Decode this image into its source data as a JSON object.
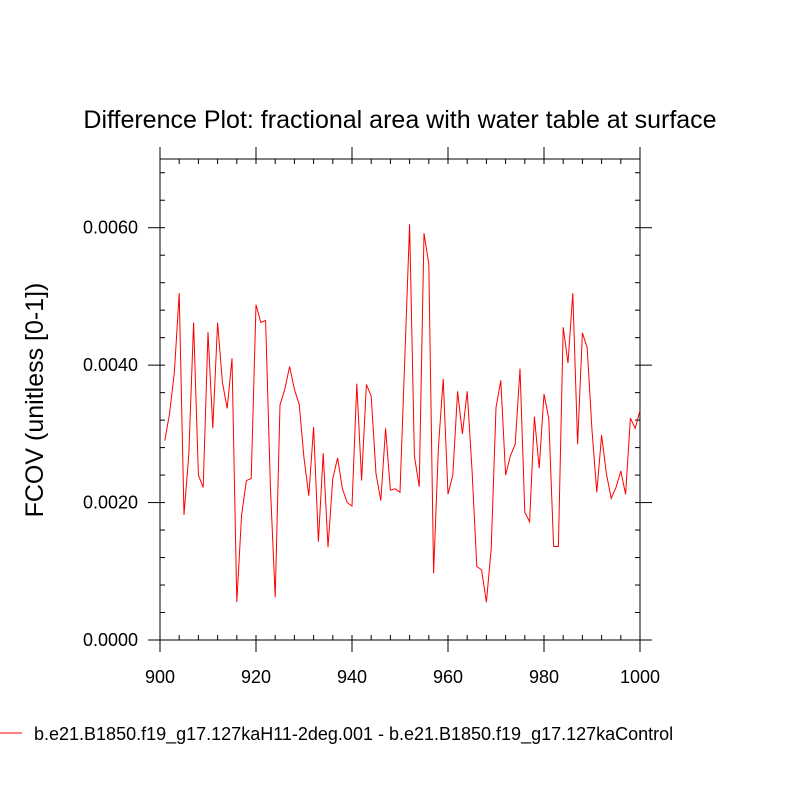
{
  "chart_data": {
    "type": "line",
    "title": "Difference Plot: fractional area with water table at surface",
    "xlabel": "",
    "ylabel": "FCOV  (unitless [0-1])",
    "xlim": [
      900,
      1000
    ],
    "ylim": [
      0.0,
      0.007
    ],
    "x_ticks": [
      900,
      920,
      940,
      960,
      980,
      1000
    ],
    "x_tick_labels": [
      "900",
      "920",
      "940",
      "960",
      "980",
      "1000"
    ],
    "y_ticks": [
      0.0,
      0.002,
      0.004,
      0.006
    ],
    "y_tick_labels": [
      "0.0000",
      "0.0020",
      "0.0040",
      "0.0060"
    ],
    "grid": false,
    "legend_position": "bottom",
    "series": [
      {
        "name": "b.e21.B1850.f19_g17.127kaH11-2deg.001 - b.e21.B1850.f19_g17.127kaControl",
        "color": "#ff0000",
        "x": [
          901,
          902,
          903,
          904,
          905,
          906,
          907,
          908,
          909,
          910,
          911,
          912,
          913,
          914,
          915,
          916,
          917,
          918,
          919,
          920,
          921,
          922,
          923,
          924,
          925,
          926,
          927,
          928,
          929,
          930,
          931,
          932,
          933,
          934,
          935,
          936,
          937,
          938,
          939,
          940,
          941,
          942,
          943,
          944,
          945,
          946,
          947,
          948,
          949,
          950,
          951,
          952,
          953,
          954,
          955,
          956,
          957,
          958,
          959,
          960,
          961,
          962,
          963,
          964,
          965,
          966,
          967,
          968,
          969,
          970,
          971,
          972,
          973,
          974,
          975,
          976,
          977,
          978,
          979,
          980,
          981,
          982,
          983,
          984,
          985,
          986,
          987,
          988,
          989,
          990,
          991,
          992,
          993,
          994,
          995,
          996,
          997,
          998,
          999,
          1000
        ],
        "values": [
          0.0029,
          0.0033,
          0.0039,
          0.00505,
          0.00182,
          0.0027,
          0.00462,
          0.0024,
          0.00222,
          0.00448,
          0.00308,
          0.00462,
          0.00375,
          0.00337,
          0.0041,
          0.00055,
          0.00182,
          0.00232,
          0.00235,
          0.00488,
          0.00462,
          0.00465,
          0.00223,
          0.00062,
          0.00342,
          0.00365,
          0.00398,
          0.00365,
          0.00343,
          0.00265,
          0.0021,
          0.0031,
          0.00143,
          0.00272,
          0.00135,
          0.00235,
          0.00265,
          0.0022,
          0.002,
          0.00195,
          0.00373,
          0.00232,
          0.00372,
          0.00355,
          0.00242,
          0.00203,
          0.00308,
          0.00218,
          0.0022,
          0.00215,
          0.0041,
          0.00605,
          0.00268,
          0.00223,
          0.00592,
          0.00547,
          0.00097,
          0.0028,
          0.0038,
          0.00212,
          0.0024,
          0.00362,
          0.003,
          0.00362,
          0.00248,
          0.00107,
          0.00102,
          0.00055,
          0.00133,
          0.00338,
          0.00378,
          0.0024,
          0.00268,
          0.00285,
          0.00395,
          0.00186,
          0.00172,
          0.00325,
          0.0025,
          0.00358,
          0.00322,
          0.00136,
          0.00136,
          0.00455,
          0.00403,
          0.00505,
          0.00285,
          0.00447,
          0.00425,
          0.00305,
          0.00215,
          0.00298,
          0.00242,
          0.00206,
          0.00222,
          0.00246,
          0.00212,
          0.00323,
          0.00308,
          0.00334
        ]
      }
    ]
  }
}
